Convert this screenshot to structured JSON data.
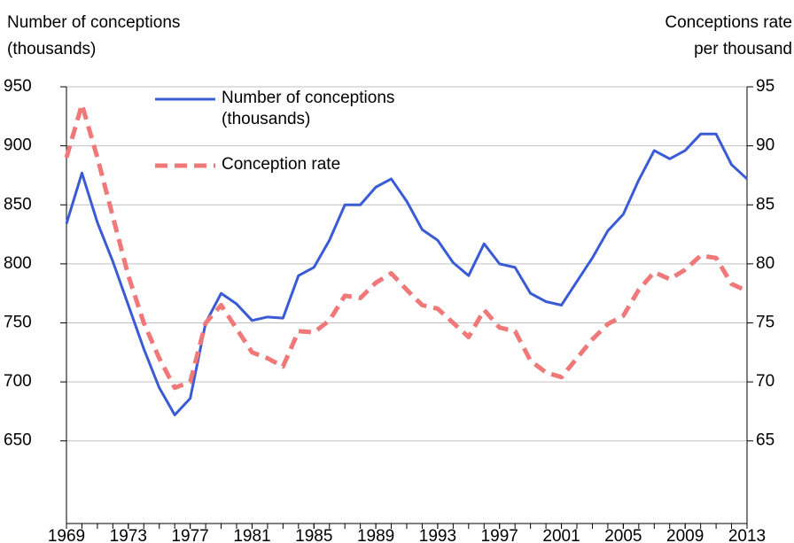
{
  "chart_data": {
    "type": "line",
    "y_label": [
      "Number of conceptions",
      "(thousands)"
    ],
    "y2_label": [
      "Conceptions rate",
      "per thousand"
    ],
    "x": [
      1969,
      1970,
      1971,
      1972,
      1973,
      1974,
      1975,
      1976,
      1977,
      1978,
      1979,
      1980,
      1981,
      1982,
      1983,
      1984,
      1985,
      1986,
      1987,
      1988,
      1989,
      1990,
      1991,
      1992,
      1993,
      1994,
      1995,
      1996,
      1997,
      1998,
      1999,
      2000,
      2001,
      2002,
      2003,
      2004,
      2005,
      2006,
      2007,
      2008,
      2009,
      2010,
      2011,
      2012,
      2013
    ],
    "xlim": [
      1969,
      2013
    ],
    "xticks": [
      1969,
      1973,
      1977,
      1981,
      1985,
      1989,
      1993,
      1997,
      2001,
      2005,
      2009,
      2013
    ],
    "ylim": [
      580,
      950
    ],
    "yticks": [
      650,
      700,
      750,
      800,
      850,
      900,
      950
    ],
    "y2lim": [
      58,
      95
    ],
    "y2ticks": [
      65,
      70,
      75,
      80,
      85,
      90,
      95
    ],
    "grid": true,
    "legend": "top-left",
    "series": [
      {
        "name": "Number of conceptions (thousands)",
        "color": "#3a5bd4",
        "dash": false,
        "values": [
          834,
          877,
          835,
          802,
          765,
          728,
          695,
          672,
          686,
          750,
          775,
          766,
          752,
          755,
          754,
          790,
          797,
          820,
          850,
          850,
          865,
          872,
          853,
          829,
          820,
          801,
          790,
          817,
          800,
          797,
          775,
          768,
          765,
          785,
          805,
          828,
          842,
          871,
          896,
          889,
          896,
          910,
          910,
          884,
          872
        ]
      },
      {
        "name": "Conception rate",
        "color": "#f07878",
        "dash": true,
        "axis": "y2",
        "values": [
          89,
          93.5,
          89,
          84,
          79,
          75,
          72,
          69.5,
          70,
          75,
          76.5,
          74.5,
          72.5,
          72,
          71.3,
          74.3,
          74.2,
          75.2,
          77.3,
          77.1,
          78.4,
          79.2,
          77.8,
          76.5,
          76.2,
          75,
          73.8,
          76.1,
          74.6,
          74.3,
          71.8,
          70.8,
          70.4,
          72,
          73.6,
          74.9,
          75.6,
          77.8,
          79.3,
          78.7,
          79.5,
          80.7,
          80.5,
          78.3,
          77.7
        ]
      }
    ]
  }
}
